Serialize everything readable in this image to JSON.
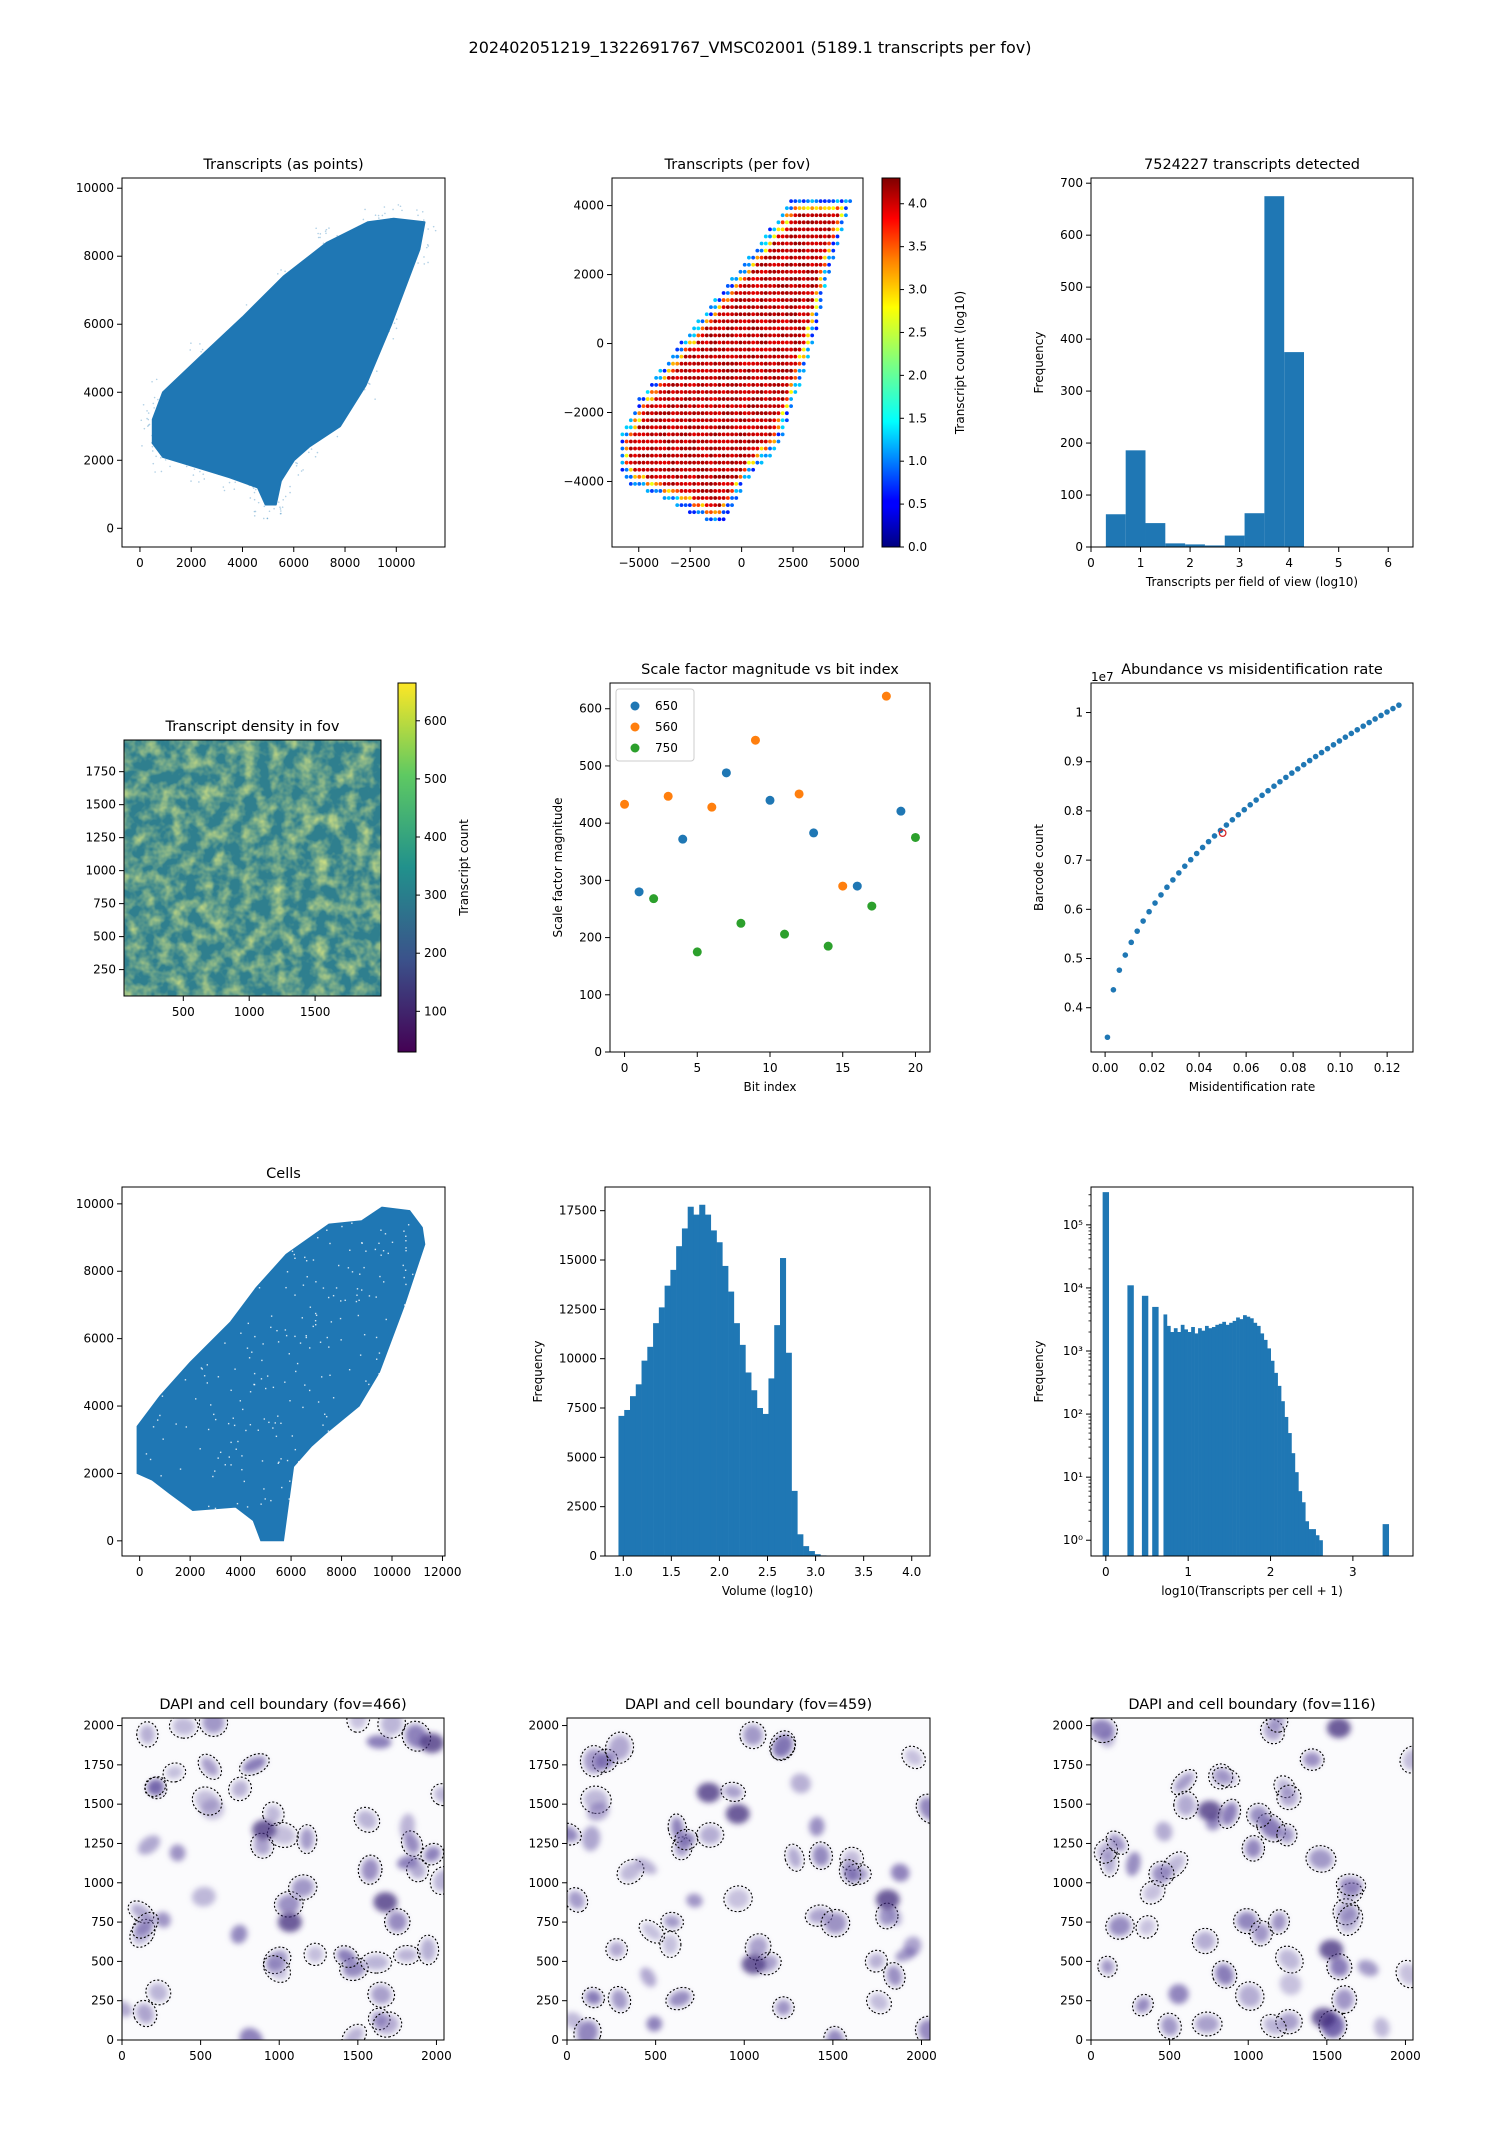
{
  "suptitle": "202402051219_1322691767_VMSC02001 (5189.1 transcripts per fov)",
  "colors": {
    "blue": "#1f77b4",
    "orange": "#ff7f0e",
    "green": "#2ca02c",
    "red": "#d62728"
  },
  "chart_data": [
    {
      "id": "p1",
      "type": "scatter",
      "title": "Transcripts (as points)",
      "xlabel": "",
      "ylabel": "",
      "xlim": [
        -700,
        11900
      ],
      "ylim": [
        -550,
        10300
      ],
      "xticks": [
        0,
        2000,
        4000,
        6000,
        8000,
        10000
      ],
      "yticks": [
        0,
        2000,
        4000,
        6000,
        8000,
        10000
      ],
      "tissue_outline": [
        [
          500,
          3200
        ],
        [
          900,
          4000
        ],
        [
          2300,
          5000
        ],
        [
          4000,
          6200
        ],
        [
          5600,
          7400
        ],
        [
          7300,
          8400
        ],
        [
          8900,
          9000
        ],
        [
          9900,
          9100
        ],
        [
          11100,
          9000
        ],
        [
          10900,
          8200
        ],
        [
          9800,
          6000
        ],
        [
          8800,
          4200
        ],
        [
          7800,
          3000
        ],
        [
          6600,
          2400
        ],
        [
          6000,
          2000
        ],
        [
          5500,
          1400
        ],
        [
          5300,
          700
        ],
        [
          4900,
          700
        ],
        [
          4600,
          1200
        ],
        [
          3500,
          1500
        ],
        [
          2200,
          1800
        ],
        [
          900,
          2100
        ],
        [
          500,
          2500
        ]
      ]
    },
    {
      "id": "p2",
      "type": "scatter",
      "title": "Transcripts (per fov)",
      "colorbar_label": "Transcript count (log10)",
      "colorbar_range": [
        0.0,
        4.3
      ],
      "colorbar_ticks": [
        "0.0",
        "0.5",
        "1.0",
        "1.5",
        "2.0",
        "2.5",
        "3.0",
        "3.5",
        "4.0"
      ],
      "xlim": [
        -6300,
        5900
      ],
      "ylim": [
        -5900,
        4800
      ],
      "xticks": [
        -5000,
        -2500,
        0,
        2500,
        5000
      ],
      "xticklabels": [
        "−5000",
        "−2500",
        "0",
        "2500",
        "5000"
      ],
      "yticks": [
        -4000,
        -2000,
        0,
        2000,
        4000
      ],
      "yticklabels": [
        "−4000",
        "−2000",
        "0",
        "2000",
        "4000"
      ],
      "fov_region": [
        [
          -6000,
          -2900
        ],
        [
          -5900,
          -3600
        ],
        [
          -5400,
          -4100
        ],
        [
          -3800,
          -4500
        ],
        [
          -1500,
          -5200
        ],
        [
          -1000,
          -5300
        ],
        [
          200,
          -4000
        ],
        [
          1800,
          -3000
        ],
        [
          2500,
          -1800
        ],
        [
          3500,
          0
        ],
        [
          4300,
          2200
        ],
        [
          5200,
          3800
        ],
        [
          5300,
          4200
        ],
        [
          2400,
          4200
        ],
        [
          1000,
          3000
        ],
        [
          -1000,
          1500
        ],
        [
          -3000,
          0
        ],
        [
          -5000,
          -1600
        ]
      ]
    },
    {
      "id": "p3",
      "type": "bar",
      "title": "7524227 transcripts detected",
      "xlabel": "Transcripts per field of view (log10)",
      "ylabel": "Frequency",
      "xlim": [
        0,
        6.5
      ],
      "ylim": [
        0,
        710
      ],
      "xticks": [
        0,
        1,
        2,
        3,
        4,
        5,
        6
      ],
      "yticks": [
        0,
        100,
        200,
        300,
        400,
        500,
        600,
        700
      ],
      "bin_edges": [
        0.3,
        0.7,
        1.1,
        1.5,
        1.9,
        2.3,
        2.7,
        3.1,
        3.5,
        3.9,
        4.3
      ],
      "values": [
        63,
        186,
        46,
        7,
        5,
        3,
        22,
        65,
        675,
        375
      ]
    },
    {
      "id": "p4",
      "type": "heatmap",
      "title": "Transcript density in fov",
      "colorbar_label": "Transcript count",
      "colorbar_range": [
        30,
        665
      ],
      "colorbar_ticks": [
        100,
        200,
        300,
        400,
        500,
        600
      ],
      "xlim": [
        50,
        2000
      ],
      "ylim": [
        50,
        1990
      ],
      "xticks": [
        500,
        1000,
        1500
      ],
      "yticks": [
        250,
        500,
        750,
        1000,
        1250,
        1500,
        1750
      ]
    },
    {
      "id": "p5",
      "type": "scatter",
      "title": "Scale factor magnitude vs bit index",
      "xlabel": "Bit index",
      "ylabel": "Scale factor magnitude",
      "xlim": [
        -1,
        21
      ],
      "ylim": [
        0,
        645
      ],
      "xticks": [
        0,
        5,
        10,
        15,
        20
      ],
      "yticks": [
        0,
        100,
        200,
        300,
        400,
        500,
        600
      ],
      "legend_position": "top-left",
      "series": [
        {
          "name": "650",
          "x": [
            1,
            4,
            7,
            10,
            13,
            16,
            19
          ],
          "y": [
            280,
            372,
            488,
            440,
            383,
            290,
            421
          ]
        },
        {
          "name": "560",
          "x": [
            0,
            3,
            6,
            9,
            12,
            15,
            18
          ],
          "y": [
            433,
            447,
            428,
            545,
            451,
            290,
            622
          ]
        },
        {
          "name": "750",
          "x": [
            2,
            5,
            8,
            11,
            14,
            17,
            20
          ],
          "y": [
            268,
            175,
            225,
            206,
            185,
            255,
            375
          ]
        }
      ]
    },
    {
      "id": "p6",
      "type": "scatter",
      "title": "Abundance vs misidentification rate",
      "xlabel": "Misidentification rate",
      "ylabel": "Barcode count",
      "offset_text": "1e7",
      "xlim": [
        -0.006,
        0.131
      ],
      "ylim": [
        0.31,
        1.06
      ],
      "xticks": [
        0.0,
        0.02,
        0.04,
        0.06,
        0.08,
        0.1,
        0.12
      ],
      "xticklabels": [
        "0.00",
        "0.02",
        "0.04",
        "0.06",
        "0.08",
        "0.10",
        "0.12"
      ],
      "yticks": [
        0.4,
        0.5,
        0.6,
        0.7,
        0.8,
        0.9,
        1.0
      ],
      "highlight": {
        "x": 0.05,
        "y": 0.755
      },
      "curve": {
        "x_start": 0.001,
        "x_end": 0.125,
        "y_start": 0.34,
        "y_end": 1.015,
        "n": 50
      }
    },
    {
      "id": "p7",
      "type": "scatter",
      "title": "Cells",
      "xlim": [
        -700,
        12100
      ],
      "ylim": [
        -450,
        10500
      ],
      "xticks": [
        0,
        2000,
        4000,
        6000,
        8000,
        10000,
        12000
      ],
      "yticks": [
        0,
        2000,
        4000,
        6000,
        8000,
        10000
      ],
      "region_outline": [
        [
          -100,
          2000
        ],
        [
          -100,
          3400
        ],
        [
          800,
          4300
        ],
        [
          2000,
          5300
        ],
        [
          3600,
          6500
        ],
        [
          4600,
          7500
        ],
        [
          5800,
          8500
        ],
        [
          7500,
          9400
        ],
        [
          8800,
          9500
        ],
        [
          9600,
          9900
        ],
        [
          10700,
          9800
        ],
        [
          11200,
          9300
        ],
        [
          11300,
          8800
        ],
        [
          10500,
          7000
        ],
        [
          9500,
          5000
        ],
        [
          8700,
          4000
        ],
        [
          7400,
          3200
        ],
        [
          6800,
          2800
        ],
        [
          6100,
          2200
        ],
        [
          5900,
          1100
        ],
        [
          5700,
          0
        ],
        [
          4800,
          0
        ],
        [
          4500,
          600
        ],
        [
          3800,
          1000
        ],
        [
          2100,
          900
        ],
        [
          1200,
          1400
        ],
        [
          500,
          1800
        ]
      ]
    },
    {
      "id": "p8",
      "type": "bar",
      "title": "",
      "xlabel": "Volume (log10)",
      "ylabel": "Frequency",
      "xlim": [
        0.81,
        4.19
      ],
      "ylim": [
        0,
        18700
      ],
      "xticks": [
        1.0,
        1.5,
        2.0,
        2.5,
        3.0,
        3.5,
        4.0
      ],
      "xticklabels": [
        "1.0",
        "1.5",
        "2.0",
        "2.5",
        "3.0",
        "3.5",
        "4.0"
      ],
      "yticks": [
        0,
        2500,
        5000,
        7500,
        10000,
        12500,
        15000,
        17500
      ],
      "bin_start": 0.95,
      "bin_width": 0.06,
      "values": [
        7100,
        7400,
        8100,
        8700,
        9900,
        10600,
        11800,
        12600,
        13700,
        14500,
        15700,
        16600,
        17700,
        17300,
        17800,
        17300,
        16500,
        15900,
        14700,
        13400,
        11800,
        10700,
        9300,
        8400,
        7500,
        7200,
        9000,
        11700,
        15100,
        10300,
        3300,
        1100,
        500,
        250,
        90,
        30,
        10,
        4
      ]
    },
    {
      "id": "p9",
      "type": "bar",
      "title": "",
      "xlabel": "log10(Transcripts per cell + 1)",
      "ylabel": "Frequency",
      "y_scale": "log",
      "xlim": [
        -0.18,
        3.73
      ],
      "ylim_log10": [
        -0.25,
        5.6
      ],
      "xticks": [
        0,
        1,
        2,
        3
      ],
      "yticks_exp": [
        0,
        1,
        2,
        3,
        4,
        5
      ],
      "yticklabels": [
        "10⁰",
        "10¹",
        "10²",
        "10³",
        "10⁴",
        "10⁵"
      ],
      "spikes": [
        {
          "x": 0.0,
          "v": 330000
        },
        {
          "x": 0.301,
          "v": 11000
        },
        {
          "x": 0.477,
          "v": 7500
        },
        {
          "x": 0.602,
          "v": 5000
        },
        {
          "x": 3.4,
          "v": 1.8
        }
      ],
      "bin_start": 0.7,
      "bin_width": 0.042,
      "values": [
        3800,
        2500,
        2000,
        2300,
        2000,
        2600,
        2200,
        2000,
        2400,
        1900,
        2300,
        2100,
        2500,
        2300,
        2400,
        2600,
        2700,
        2900,
        2600,
        2800,
        3000,
        3400,
        3200,
        3700,
        3500,
        3300,
        2800,
        2500,
        1900,
        1500,
        1100,
        700,
        450,
        280,
        160,
        90,
        50,
        24,
        12,
        6,
        4,
        2,
        1.5,
        1.5,
        1.2,
        1.0,
        0,
        0,
        0,
        0,
        0,
        0,
        0,
        0,
        0,
        0,
        0,
        0,
        0,
        0,
        0,
        0,
        0,
        0,
        0,
        0,
        0
      ]
    },
    {
      "id": "p10",
      "type": "image",
      "title": "DAPI and cell boundary (fov=466)",
      "xlim": [
        0,
        2048
      ],
      "ylim": [
        0,
        2048
      ],
      "xticks": [
        0,
        500,
        1000,
        1500,
        2000
      ],
      "yticks": [
        0,
        250,
        500,
        750,
        1000,
        1250,
        1500,
        1750,
        2000
      ]
    },
    {
      "id": "p11",
      "type": "image",
      "title": "DAPI and cell boundary (fov=459)",
      "xlim": [
        0,
        2048
      ],
      "ylim": [
        0,
        2048
      ],
      "xticks": [
        0,
        500,
        1000,
        1500,
        2000
      ],
      "yticks": [
        0,
        250,
        500,
        750,
        1000,
        1250,
        1500,
        1750,
        2000
      ]
    },
    {
      "id": "p12",
      "type": "image",
      "title": "DAPI and cell boundary (fov=116)",
      "xlim": [
        0,
        2048
      ],
      "ylim": [
        0,
        2048
      ],
      "xticks": [
        0,
        500,
        1000,
        1500,
        2000
      ],
      "yticks": [
        0,
        250,
        500,
        750,
        1000,
        1250,
        1500,
        1750,
        2000
      ]
    }
  ]
}
